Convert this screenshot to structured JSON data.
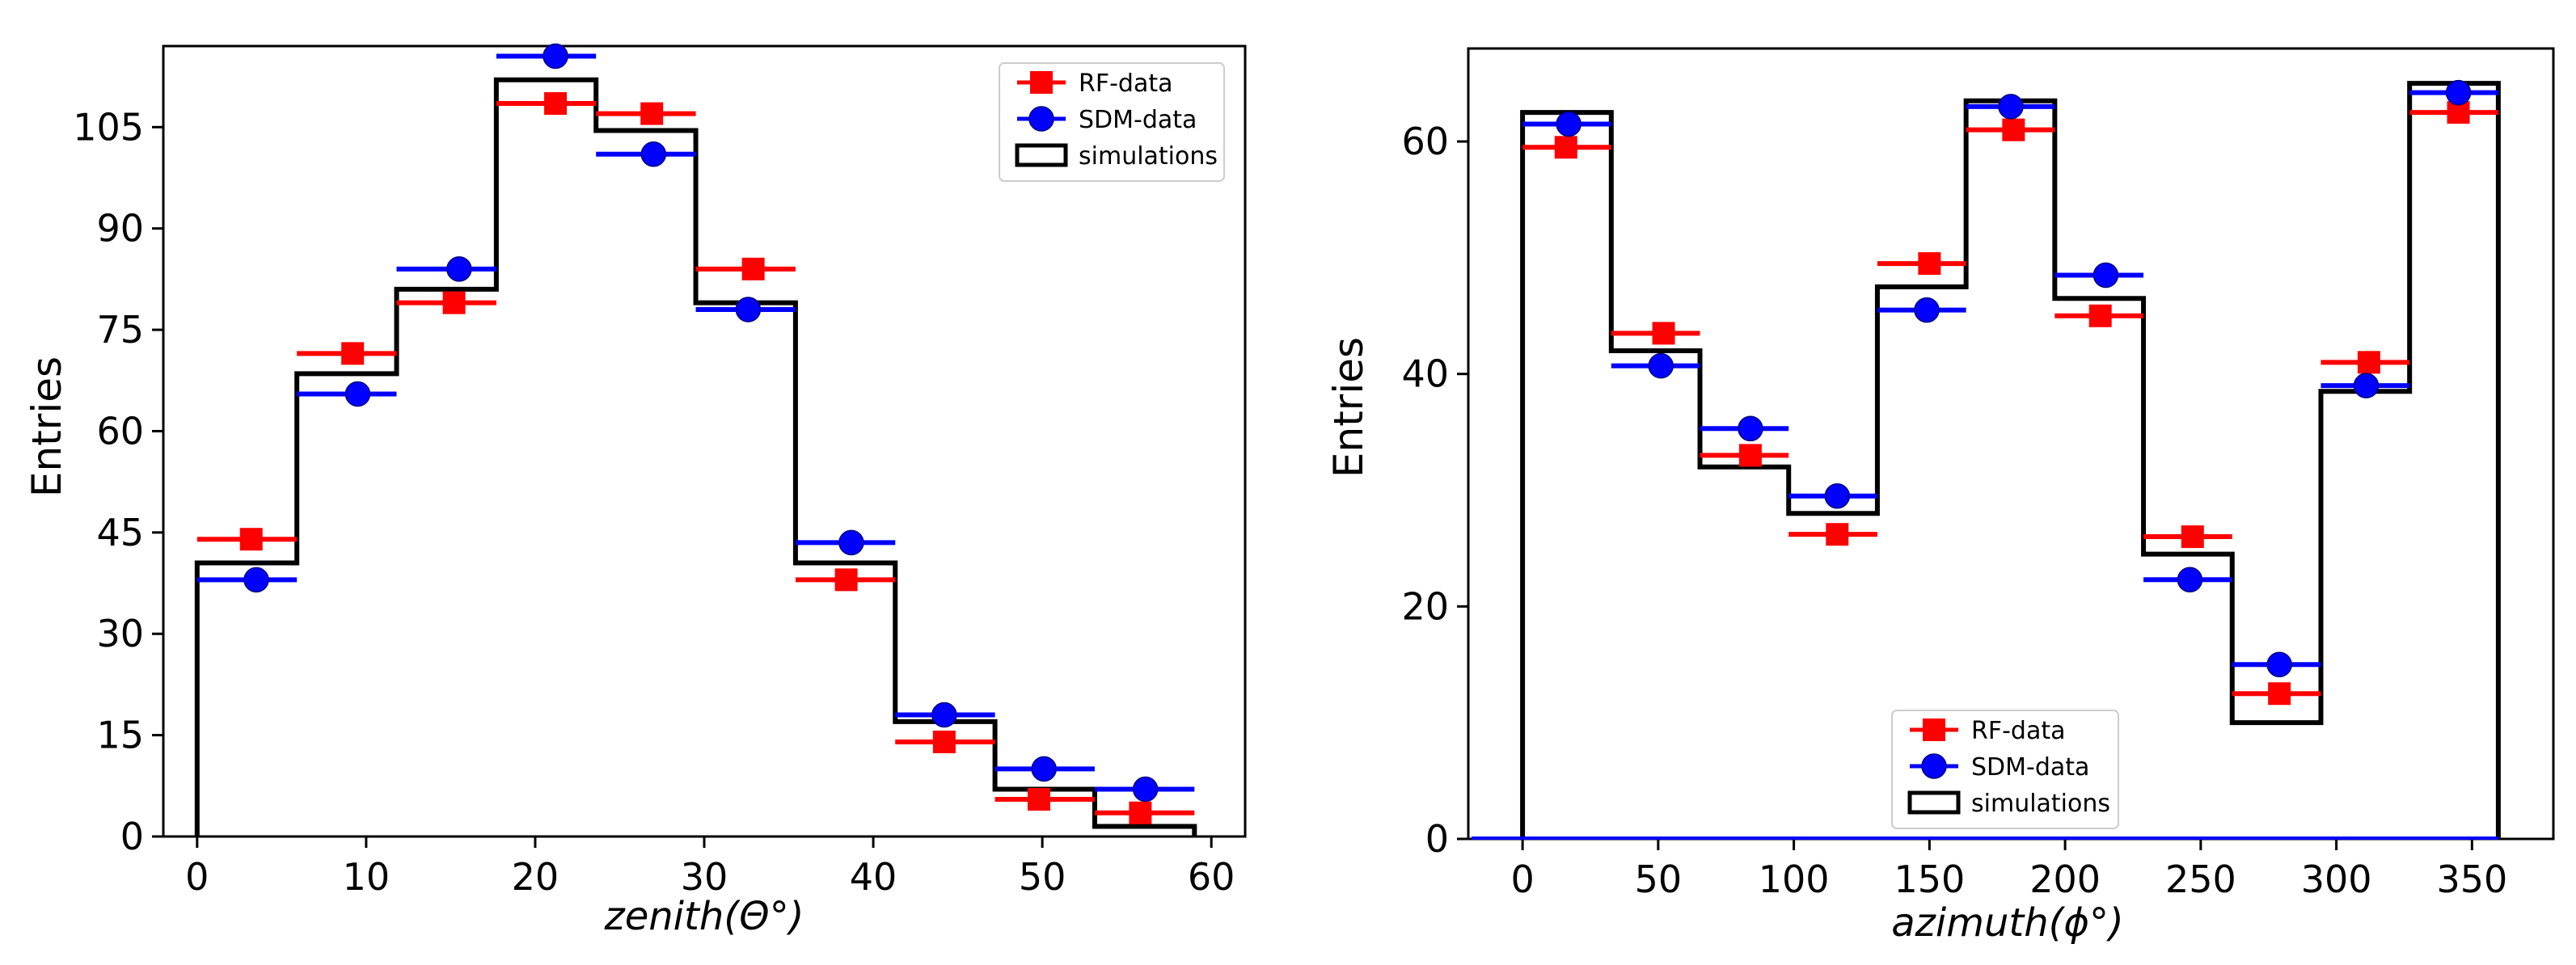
{
  "chart_data": [
    {
      "type": "histogram",
      "xlabel": "zenith(Θ°)",
      "ylabel": "Entries",
      "xlim": [
        -2,
        62
      ],
      "ylim": [
        0,
        117
      ],
      "xticks": [
        0,
        10,
        20,
        30,
        40,
        50,
        60
      ],
      "yticks": [
        0,
        15,
        30,
        45,
        60,
        75,
        90,
        105
      ],
      "legend": {
        "position": "top-right",
        "entries": [
          "RF-data",
          "SDM-data",
          "simulations"
        ]
      },
      "bin_edges": [
        0,
        5.9,
        11.8,
        17.7,
        23.6,
        29.5,
        35.4,
        41.3,
        47.2,
        53.1,
        59
      ],
      "series": [
        {
          "name": "RF-data",
          "marker": "square",
          "color": "#ff0000",
          "x": [
            3.2,
            9.2,
            15.2,
            21.2,
            26.9,
            32.9,
            38.4,
            44.2,
            49.8,
            55.8
          ],
          "values": [
            44,
            71.5,
            79,
            108.5,
            107,
            84,
            38,
            14,
            5.5,
            3.5
          ]
        },
        {
          "name": "SDM-data",
          "marker": "circle",
          "color": "#0000ff",
          "x": [
            3.5,
            9.5,
            15.5,
            21.2,
            27,
            32.6,
            38.7,
            44.2,
            50.1,
            56.1
          ],
          "values": [
            38,
            65.5,
            84,
            115.5,
            101,
            78,
            43.5,
            18,
            10,
            7
          ]
        },
        {
          "name": "simulations",
          "type": "step",
          "color": "#000000",
          "values": [
            40.5,
            68.5,
            81,
            112,
            104.5,
            79,
            40.5,
            17,
            7,
            1.5
          ]
        }
      ]
    },
    {
      "type": "histogram",
      "xlabel": "azimuth(ϕ°)",
      "ylabel": "Entries",
      "xlim": [
        -20,
        380
      ],
      "ylim": [
        0,
        68
      ],
      "xticks": [
        0,
        50,
        100,
        150,
        200,
        250,
        300,
        350
      ],
      "yticks": [
        0,
        20,
        40,
        60
      ],
      "legend": {
        "position": "bottom-center",
        "entries": [
          "RF-data",
          "SDM-data",
          "simulations"
        ]
      },
      "bin_edges": [
        0,
        32.7,
        65.4,
        98.1,
        130.8,
        163.5,
        196.2,
        228.9,
        261.6,
        294.3,
        327,
        359.7
      ],
      "series": [
        {
          "name": "RF-data",
          "marker": "square",
          "color": "#ff0000",
          "x": [
            16,
            52,
            84,
            116,
            150,
            181,
            213,
            247,
            279,
            312,
            345
          ],
          "values": [
            59.5,
            43.5,
            33,
            26.2,
            49.5,
            61,
            45,
            26,
            12.5,
            41,
            62.5
          ]
        },
        {
          "name": "SDM-data",
          "marker": "circle",
          "color": "#0000ff",
          "x": [
            17,
            51,
            84,
            116,
            149,
            180,
            215,
            246,
            279,
            311,
            345
          ],
          "values": [
            61.5,
            40.7,
            35.3,
            29.5,
            45.5,
            63,
            48.5,
            22.3,
            15,
            39,
            64.2
          ]
        },
        {
          "name": "simulations",
          "type": "step",
          "color": "#000000",
          "values": [
            62.5,
            42,
            32,
            28,
            47.5,
            63.5,
            46.5,
            24.5,
            10,
            38.5,
            65
          ]
        }
      ]
    }
  ]
}
